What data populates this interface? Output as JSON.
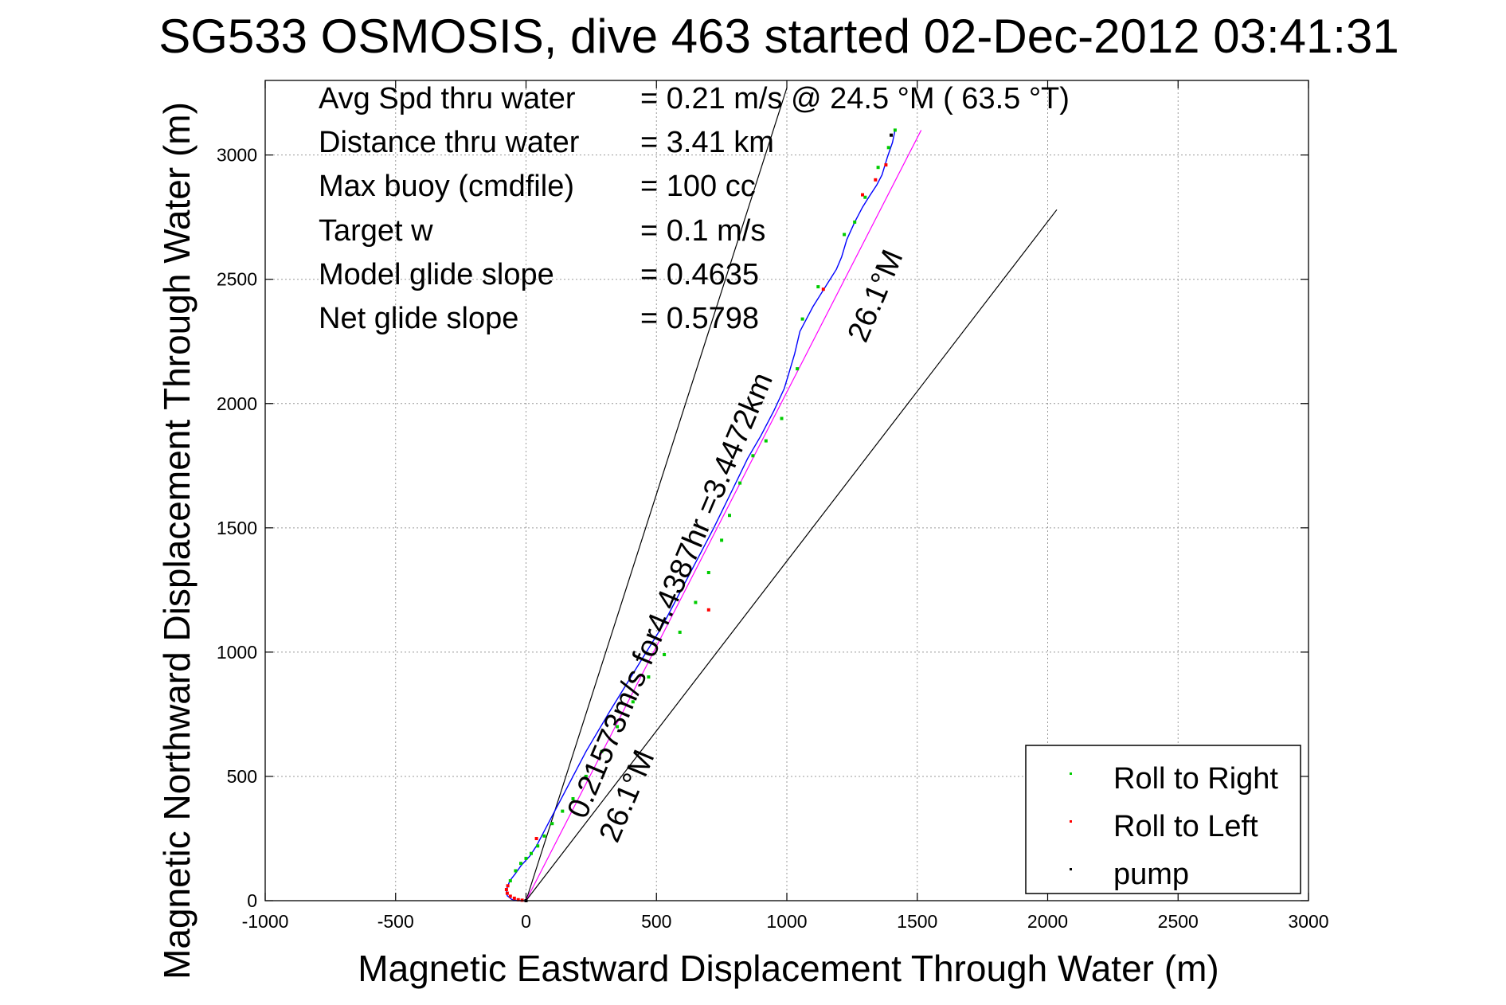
{
  "chart_data": {
    "type": "line",
    "title": "SG533 OSMOSIS, dive 463 started 02-Dec-2012 03:41:31",
    "xlabel": "Magnetic Eastward Displacement Through Water (m)",
    "ylabel": "Magnetic Northward Displacement Through Water (m)",
    "xlim": [
      -1000,
      3000
    ],
    "ylim": [
      0,
      3300
    ],
    "xticks": [
      -1000,
      -500,
      0,
      500,
      1000,
      1500,
      2000,
      2500,
      3000
    ],
    "yticks": [
      0,
      500,
      1000,
      1500,
      2000,
      2500,
      3000
    ],
    "xtick_labels": [
      "-1000",
      "-500",
      "0",
      "500",
      "1000",
      "1500",
      "2000",
      "2500",
      "3000"
    ],
    "ytick_labels": [
      "0",
      "500",
      "1000",
      "1500",
      "2000",
      "2500",
      "3000"
    ],
    "grid": true,
    "legend_position": "bottom-right",
    "annotations": [
      {
        "label": "Avg Spd thru water",
        "value": "=  0.21 m/s @  24.5 °M ( 63.5 °T)"
      },
      {
        "label": "Distance thru water",
        "value": "=  3.41 km"
      },
      {
        "label": "Max buoy (cmdfile)",
        "value": "= 100 cc"
      },
      {
        "label": "Target w",
        "value": "= 0.1 m/s"
      },
      {
        "label": "Model glide slope",
        "value": "= 0.4635"
      },
      {
        "label": "Net glide slope",
        "value": "= 0.5798"
      }
    ],
    "rotated_labels": {
      "track_summary": "0.21573m/s for4.4387hr =3.4472km",
      "lower_heading": "26.1°M",
      "upper_heading": "26.1°M"
    },
    "reference_lines": [
      {
        "x": [
          0,
          1000
        ],
        "y": [
          0,
          3270
        ],
        "color": "#000000"
      },
      {
        "x": [
          0,
          1515
        ],
        "y": [
          0,
          3100
        ],
        "color": "#ff00ff"
      },
      {
        "x": [
          0,
          2035
        ],
        "y": [
          0,
          2780
        ],
        "color": "#000000"
      }
    ],
    "track": {
      "color": "#0000ff",
      "x": [
        0,
        -30,
        -55,
        -72,
        -75,
        -62,
        -40,
        -20,
        15,
        40,
        70,
        110,
        160,
        230,
        320,
        420,
        520,
        620,
        720,
        790,
        850,
        900,
        950,
        990,
        1010,
        1030,
        1050,
        1075,
        1100,
        1130,
        1160,
        1190,
        1210,
        1230,
        1260,
        1290,
        1320,
        1345,
        1365,
        1385,
        1405,
        1415
      ],
      "y": [
        0,
        0,
        5,
        20,
        45,
        80,
        110,
        140,
        180,
        220,
        280,
        360,
        460,
        600,
        760,
        930,
        1100,
        1300,
        1500,
        1650,
        1780,
        1870,
        1970,
        2060,
        2130,
        2200,
        2290,
        2340,
        2390,
        2440,
        2490,
        2540,
        2590,
        2660,
        2730,
        2790,
        2840,
        2880,
        2920,
        2990,
        3050,
        3100
      ]
    },
    "series": [
      {
        "name": "Roll to Right",
        "color": "#00cc00",
        "x": [
          -60,
          -40,
          -20,
          0,
          20,
          45,
          70,
          100,
          140,
          180,
          230,
          290,
          350,
          410,
          470,
          530,
          590,
          650,
          700,
          750,
          780,
          820,
          870,
          920,
          980,
          1040,
          1060,
          1120,
          1220,
          1260,
          1300,
          1350,
          1390,
          1415
        ],
        "y": [
          80,
          120,
          150,
          170,
          190,
          220,
          260,
          310,
          360,
          410,
          500,
          600,
          700,
          800,
          900,
          990,
          1080,
          1200,
          1320,
          1450,
          1550,
          1680,
          1790,
          1850,
          1940,
          2140,
          2340,
          2470,
          2680,
          2730,
          2830,
          2950,
          3030,
          3100
        ]
      },
      {
        "name": "Roll to Left",
        "color": "#ff0000",
        "x": [
          0,
          -15,
          -30,
          -45,
          -60,
          -72,
          -75,
          -70,
          40,
          700,
          1140,
          1290,
          1340,
          1380
        ],
        "y": [
          0,
          2,
          4,
          10,
          18,
          30,
          45,
          60,
          250,
          1170,
          2460,
          2840,
          2900,
          2960
        ]
      },
      {
        "name": "pump",
        "color": "#000000",
        "x": [
          0,
          1400
        ],
        "y": [
          0,
          3080
        ]
      }
    ]
  }
}
